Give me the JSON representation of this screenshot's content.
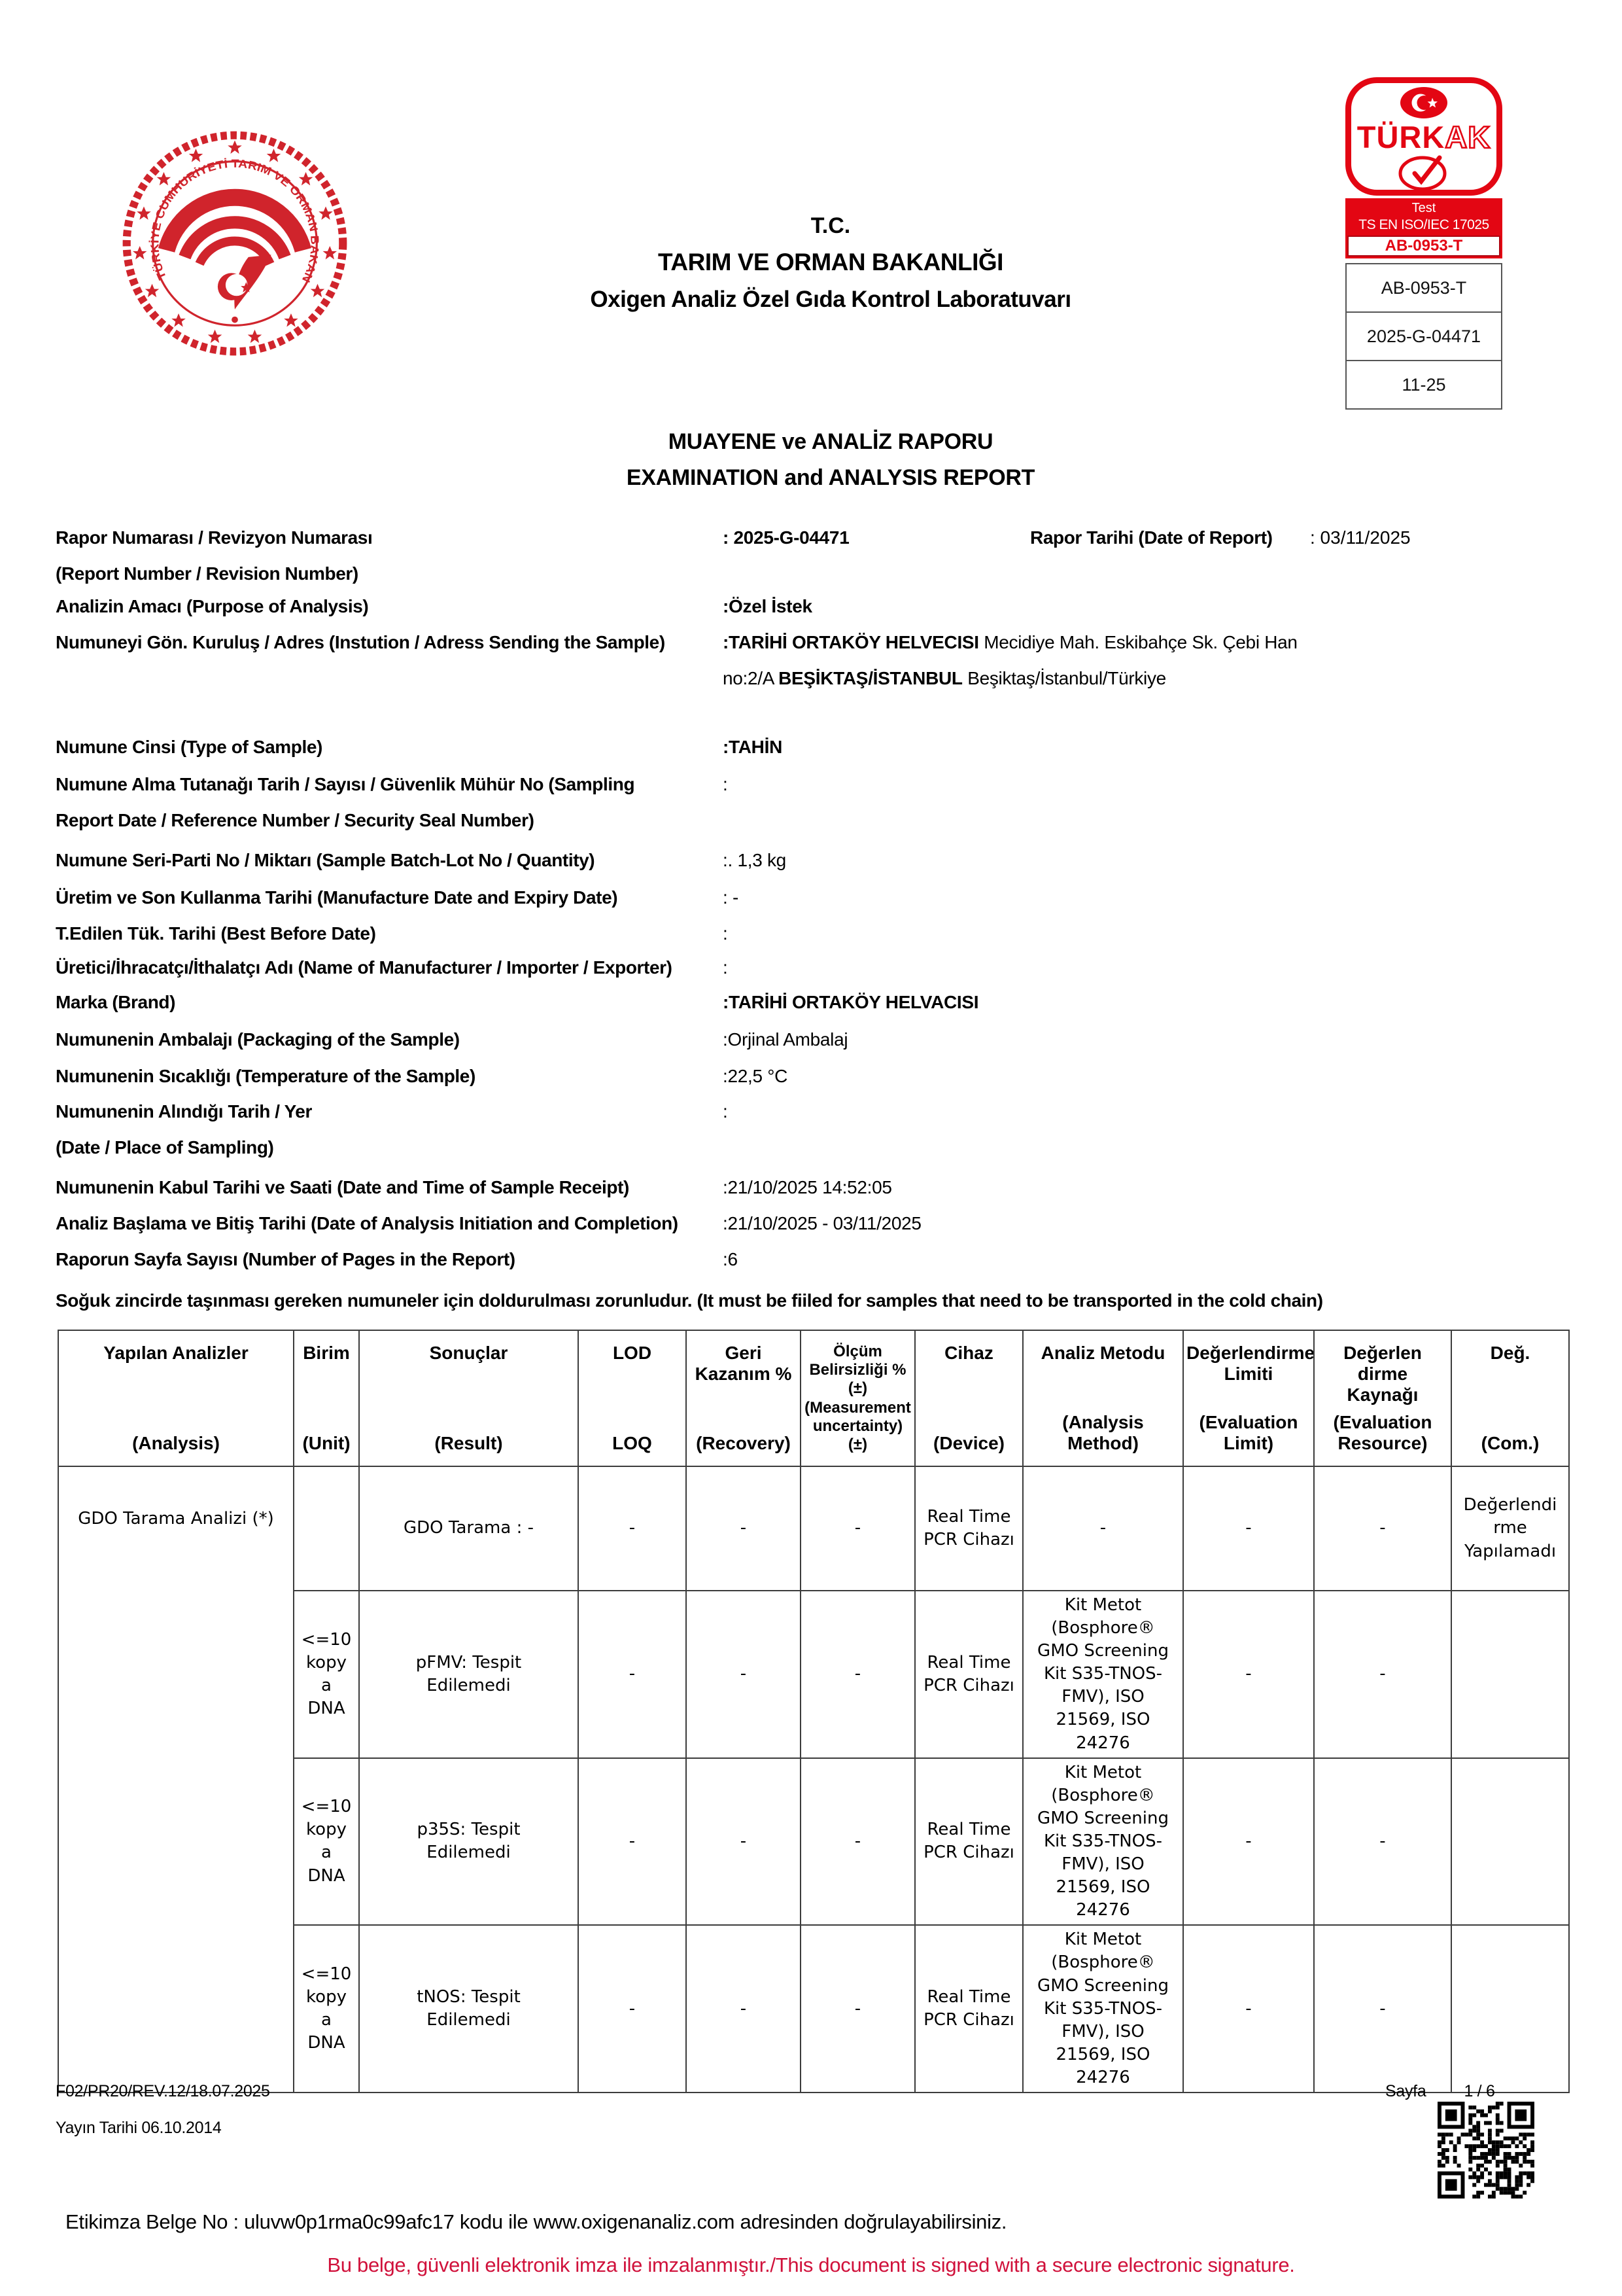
{
  "header": {
    "tc": "T.C.",
    "ministry": "TARIM VE ORMAN BAKANLIĞI",
    "lab": "Oxigen Analiz Özel Gıda Kontrol Laboratuvarı",
    "report_title_tr": "MUAYENE ve ANALİZ RAPORU",
    "report_title_en": "EXAMINATION and ANALYSIS REPORT"
  },
  "seal": {
    "ring_text": "TÜRKİYE CUMHURİYETİ TARIM VE ORMAN BAKANLIĞI"
  },
  "turkak": {
    "brand_solid": "TÜRK",
    "brand_outline": "AK",
    "band_line1": "Test",
    "band_line2": "TS EN ISO/IEC 17025",
    "band_code": "AB-0953-T",
    "info_rows": [
      "AB-0953-T",
      "2025-G-04471",
      "11-25"
    ]
  },
  "meta": {
    "rows": [
      {
        "label": "Rapor Numarası / Revizyon Numarası\n(Report Number / Revision Number)",
        "value": ": 2025-G-04471",
        "extra_label": "Rapor Tarihi (Date of Report)",
        "extra_value": ": 03/11/2025"
      },
      {
        "label": "Analizin Amacı (Purpose of Analysis)",
        "value": ":Özel İstek"
      },
      {
        "label": "Numuneyi Gön. Kuruluş / Adres (Instution / Adress Sending the Sample)",
        "value": ""
      },
      {
        "label": "Numune Cinsi (Type of Sample)",
        "value": ":TAHİN"
      },
      {
        "label": "Numune Alma Tutanağı Tarih / Sayısı / Güvenlik Mühür No (Sampling\nReport Date / Reference Number / Security Seal Number)",
        "value": ":"
      },
      {
        "label": "Numune Seri-Parti No / Miktarı (Sample Batch-Lot No / Quantity)",
        "value": ":. 1,3 kg"
      },
      {
        "label": "Üretim ve Son Kullanma Tarihi (Manufacture Date and Expiry Date)",
        "value": ": -"
      },
      {
        "label": "T.Edilen Tük. Tarihi (Best Before Date)",
        "value": ":"
      },
      {
        "label": "Üretici/İhracatçı/İthalatçı Adı (Name of Manufacturer / Importer / Exporter)",
        "value": ":"
      },
      {
        "label": "Marka (Brand)",
        "value": ":TARİHİ ORTAKÖY HELVACISI"
      },
      {
        "label": "Numunenin Ambalajı (Packaging of the Sample)",
        "value": ":Orjinal Ambalaj"
      },
      {
        "label": "Numunenin Sıcaklığı (Temperature of the Sample)",
        "value": ":22,5 °C"
      },
      {
        "label": "Numunenin Alındığı Tarih / Yer\n(Date / Place of Sampling)",
        "value": ":"
      },
      {
        "label": "Numunenin Kabul Tarihi ve Saati (Date and Time of Sample Receipt)",
        "value": ":21/10/2025 14:52:05"
      },
      {
        "label": "Analiz Başlama ve Bitiş Tarihi (Date of Analysis Initiation and Completion)",
        "value": ":21/10/2025  -  03/11/2025"
      },
      {
        "label": "Raporun Sayfa Sayısı (Number of Pages in the Report)",
        "value": ":6"
      }
    ],
    "sender": {
      "colon": ":",
      "name": "TARİHİ ORTAKÖY HELVECISI",
      "addr1": " Mecidiye Mah. Eskibahçe Sk. Çebi Han",
      "addr2a": "no:2/A   ",
      "addr2b": "BEŞİKTAŞ/İSTANBUL",
      "addr2c": "    Beşiktaş/İstanbul/Türkiye"
    }
  },
  "cold_chain_note": "Soğuk zincirde taşınması gereken numuneler için doldurulması zorunludur. (It must be fiiled for samples that need to be transported in the cold chain)",
  "table": {
    "headers": [
      {
        "tr": "Yapılan Analizler",
        "en": "(Analysis)"
      },
      {
        "tr": "Birim",
        "en": "(Unit)"
      },
      {
        "tr": "Sonuçlar",
        "en": "(Result)"
      },
      {
        "tr": "LOD",
        "en": "LOQ"
      },
      {
        "tr": "Geri\nKazanım %",
        "en": "(Recovery)"
      },
      {
        "tr": "Ölçüm\nBelirsizliği %\n(±)",
        "en": "(Measurement\nuncertainty)\n(±)"
      },
      {
        "tr": "Cihaz",
        "en": "(Device)"
      },
      {
        "tr": "Analiz Metodu",
        "en": "(Analysis Method)"
      },
      {
        "tr": "Değerlendirme\nLimiti",
        "en": "(Evaluation\nLimit)"
      },
      {
        "tr": "Değerlen\ndirme\nKaynağı",
        "en": "(Evaluation\nResource)"
      },
      {
        "tr": "Değ.",
        "en": "(Com.)"
      }
    ],
    "analysis_name": "GDO Tarama Analizi (*)",
    "rows": [
      {
        "birim": "",
        "sonuc": "GDO Tarama : -",
        "lod": "-",
        "geri": "-",
        "olcum": "-",
        "cihaz": "Real Time\nPCR Cihazı",
        "metod": "-",
        "limit": "-",
        "kaynak": "-",
        "com": "Değerlendi\nrme\nYapılamadı"
      },
      {
        "birim": "<=10\nkopy\na\nDNA",
        "sonuc": "pFMV: Tespit\nEdilemedi",
        "lod": "-",
        "geri": "-",
        "olcum": "-",
        "cihaz": "Real Time\nPCR Cihazı",
        "metod": "Kit Metot\n(Bosphore®\nGMO Screening\nKit S35-TNOS-\nFMV), ISO\n21569, ISO\n24276",
        "limit": "-",
        "kaynak": "-",
        "com": ""
      },
      {
        "birim": "<=10\nkopy\na\nDNA",
        "sonuc": "p35S: Tespit\nEdilemedi",
        "lod": "-",
        "geri": "-",
        "olcum": "-",
        "cihaz": "Real Time\nPCR Cihazı",
        "metod": "Kit Metot\n(Bosphore®\nGMO Screening\nKit S35-TNOS-\nFMV), ISO\n21569, ISO\n24276",
        "limit": "-",
        "kaynak": "-",
        "com": ""
      },
      {
        "birim": "<=10\nkopy\na\nDNA",
        "sonuc": "tNOS: Tespit\nEdilemedi",
        "lod": "-",
        "geri": "-",
        "olcum": "-",
        "cihaz": "Real Time\nPCR Cihazı",
        "metod": "Kit Metot\n(Bosphore®\nGMO Screening\nKit S35-TNOS-\nFMV), ISO\n21569, ISO\n24276",
        "limit": "-",
        "kaynak": "-",
        "com": ""
      }
    ]
  },
  "footer": {
    "doc_code": "F02/PR20/REV.12/18.07.2025",
    "pub_date": "Yayın Tarihi 06.10.2014",
    "page_label": "Sayfa",
    "page_value": "1 / 6",
    "esign_note": "Etikimza Belge No : uluvw0p1rma0c99afc17 kodu ile www.oxigenanaliz.com adresinden doğrulayabilirsiniz.",
    "signed_note": "Bu belge, güvenli elektronik imza ile imzalanmıştır./This document is signed with a secure electronic signature."
  }
}
